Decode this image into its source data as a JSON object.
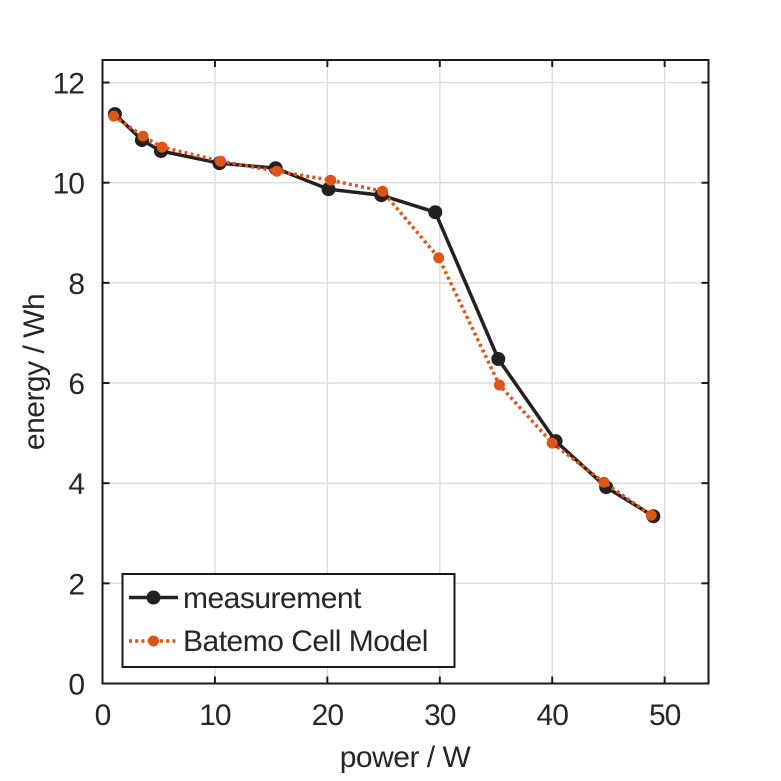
{
  "chart_data": {
    "type": "line",
    "title": "",
    "xlabel": "power / W",
    "ylabel": "energy / Wh",
    "xlim": [
      0,
      53.9
    ],
    "ylim": [
      0,
      12.45
    ],
    "xticks": [
      0,
      10,
      20,
      30,
      40,
      50
    ],
    "xtick_labels": [
      "0",
      "10",
      "20",
      "30",
      "40",
      "50"
    ],
    "yticks": [
      0,
      2,
      4,
      6,
      8,
      10,
      12
    ],
    "ytick_labels": [
      "0",
      "2",
      "4",
      "6",
      "8",
      "10",
      "12"
    ],
    "grid": true,
    "grid_color": "#DCDCDC",
    "axis_color": "#1A1A1A",
    "text_color": "#262626",
    "background_color": "#FFFFFF",
    "legend": {
      "position": "bottom-left",
      "border_color": "#1A1A1A",
      "background": "#FFFFFF"
    },
    "series": [
      {
        "name": "measurement",
        "color": "#212121",
        "line_style": "solid",
        "line_width": 3.5,
        "marker": "circle",
        "marker_radius": 7,
        "points": [
          [
            1.1,
            11.37
          ],
          [
            3.5,
            10.85
          ],
          [
            5.2,
            10.63
          ],
          [
            10.4,
            10.39
          ],
          [
            15.4,
            10.29
          ],
          [
            20.1,
            9.87
          ],
          [
            24.8,
            9.75
          ],
          [
            29.6,
            9.41
          ],
          [
            35.2,
            6.48
          ],
          [
            40.3,
            4.84
          ],
          [
            44.8,
            3.92
          ],
          [
            49.0,
            3.34
          ]
        ]
      },
      {
        "name": "Batemo Cell Model",
        "color": "#DE5517",
        "line_style": "dotted",
        "line_width": 3.5,
        "marker": "circle",
        "marker_radius": 5.5,
        "points": [
          [
            1.0,
            11.33
          ],
          [
            3.6,
            10.93
          ],
          [
            5.3,
            10.71
          ],
          [
            10.5,
            10.43
          ],
          [
            15.5,
            10.23
          ],
          [
            20.3,
            10.05
          ],
          [
            24.9,
            9.83
          ],
          [
            29.9,
            8.5
          ],
          [
            35.3,
            5.96
          ],
          [
            40.0,
            4.8
          ],
          [
            44.6,
            4.02
          ],
          [
            48.8,
            3.36
          ]
        ]
      }
    ]
  }
}
